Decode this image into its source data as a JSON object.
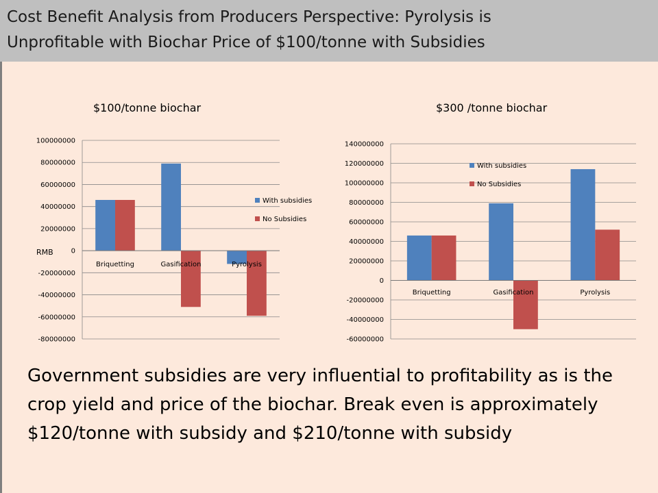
{
  "slide": {
    "title_line1": "Cost Benefit Analysis from Producers Perspective: Pyrolysis is",
    "title_line2": "Unprofitable with Biochar Price of $100/tonne with Subsidies",
    "body": "Government subsidies are very influential to profitability as is the crop  yield and price of the biochar. Break even is approximately $120/tonne with subsidy and $210/tonne with subsidy"
  },
  "colors": {
    "with_subsidies": "#4f81bd",
    "no_subsidies": "#c0504d"
  },
  "chart_data": [
    {
      "type": "bar",
      "title": "$100/tonne biochar",
      "ylabel": "RMB",
      "categories": [
        "Briquetting",
        "Gasification",
        "Pyrolysis"
      ],
      "series": [
        {
          "name": "With subsidies",
          "values": [
            46000000,
            79000000,
            -12000000
          ]
        },
        {
          "name": "No Subsidies",
          "values": [
            46000000,
            -51000000,
            -59000000
          ]
        }
      ],
      "ylim": [
        -80000000,
        100000000
      ],
      "yticks": [
        "100000000",
        "80000000",
        "60000000",
        "40000000",
        "20000000",
        "0",
        "-20000000",
        "-40000000",
        "-60000000",
        "-80000000"
      ],
      "legend": "right",
      "grid": true
    },
    {
      "type": "bar",
      "title": "$300 /tonne biochar",
      "ylabel": "",
      "categories": [
        "Briquetting",
        "Gasification",
        "Pyrolysis"
      ],
      "series": [
        {
          "name": "With subsidies",
          "values": [
            46000000,
            79000000,
            114000000
          ]
        },
        {
          "name": "No Subsidies",
          "values": [
            46000000,
            -50000000,
            52000000
          ]
        }
      ],
      "ylim": [
        -60000000,
        140000000
      ],
      "yticks": [
        "140000000",
        "120000000",
        "100000000",
        "80000000",
        "60000000",
        "40000000",
        "20000000",
        "0",
        "-20000000",
        "-40000000",
        "-60000000"
      ],
      "legend": "top-left",
      "grid": true
    }
  ]
}
